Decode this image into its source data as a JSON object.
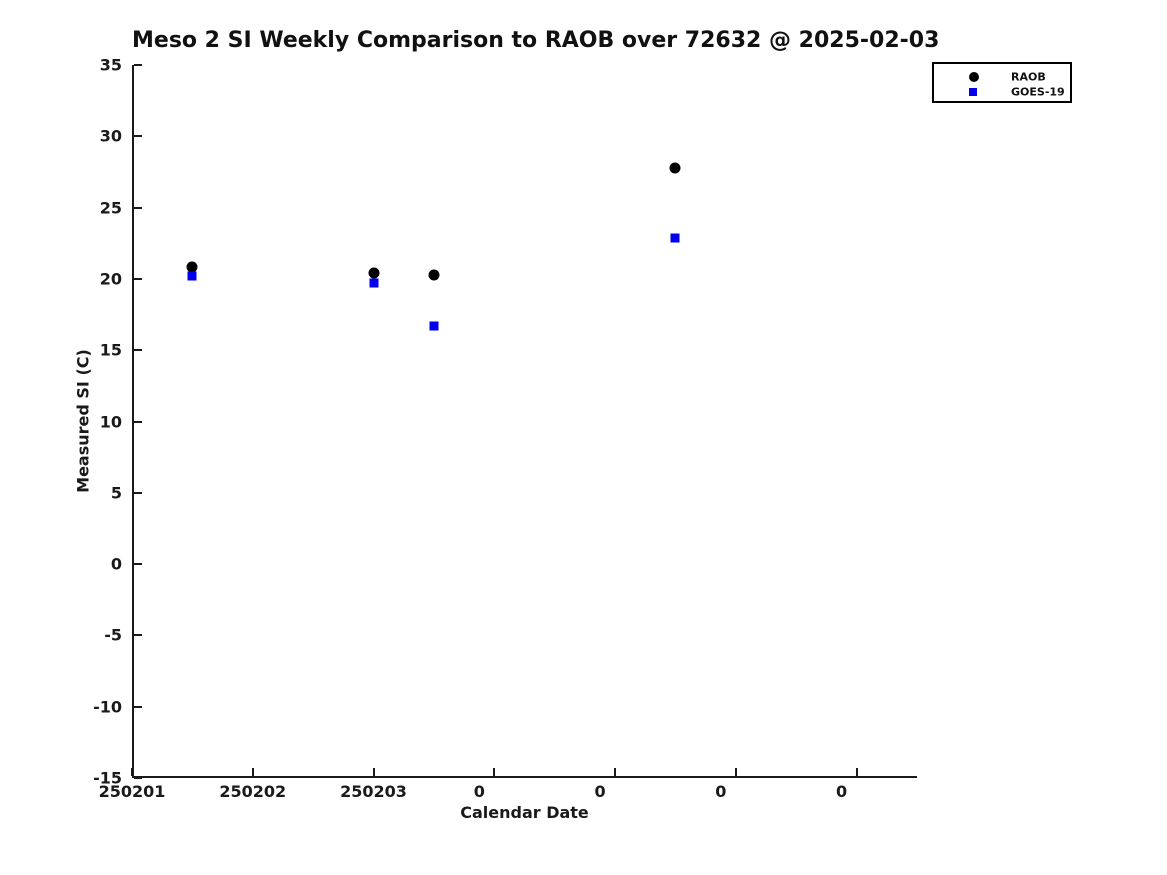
{
  "figure": {
    "title": "Meso 2 SI Weekly Comparison to RAOB over 72632 @ 2025-02-03"
  },
  "chart_data": {
    "type": "scatter",
    "title": "Meso 2 SI Weekly Comparison to RAOB over 72632 @ 2025-02-03",
    "xlabel": "Calendar Date",
    "ylabel": "Measured SI (C)",
    "xlim": [
      0,
      6.5
    ],
    "ylim": [
      -15,
      35
    ],
    "grid": false,
    "x_unit": "days from first tick (1 tick interval = 1 day)",
    "x_ticks": [
      {
        "pos": 0,
        "label": "250201",
        "dx": 0
      },
      {
        "pos": 1,
        "label": "250202",
        "dx": 0
      },
      {
        "pos": 2,
        "label": "250203",
        "dx": 0
      },
      {
        "pos": 3,
        "label": "0",
        "dx": -15
      },
      {
        "pos": 4,
        "label": "0",
        "dx": -15
      },
      {
        "pos": 5,
        "label": "0",
        "dx": -15
      },
      {
        "pos": 6,
        "label": "0",
        "dx": -15
      }
    ],
    "y_ticks": [
      35,
      30,
      25,
      20,
      15,
      10,
      5,
      0,
      -5,
      -10,
      -15
    ],
    "legend": {
      "position": "top-right",
      "entries": [
        "RAOB",
        "GOES-19"
      ]
    },
    "series": [
      {
        "name": "RAOB",
        "marker": "circle",
        "color": "#000000",
        "marker_size": 11,
        "legend_marker_size": 10,
        "points": [
          {
            "x": 0.5,
            "y": 20.8
          },
          {
            "x": 2.0,
            "y": 20.4
          },
          {
            "x": 2.5,
            "y": 20.3
          },
          {
            "x": 4.5,
            "y": 27.8
          }
        ]
      },
      {
        "name": "GOES-19",
        "marker": "square",
        "color": "#0000ee",
        "marker_size": 9,
        "legend_marker_size": 8,
        "points": [
          {
            "x": 0.5,
            "y": 20.2
          },
          {
            "x": 2.0,
            "y": 19.7
          },
          {
            "x": 2.5,
            "y": 16.7
          },
          {
            "x": 4.5,
            "y": 22.9
          }
        ]
      }
    ]
  }
}
